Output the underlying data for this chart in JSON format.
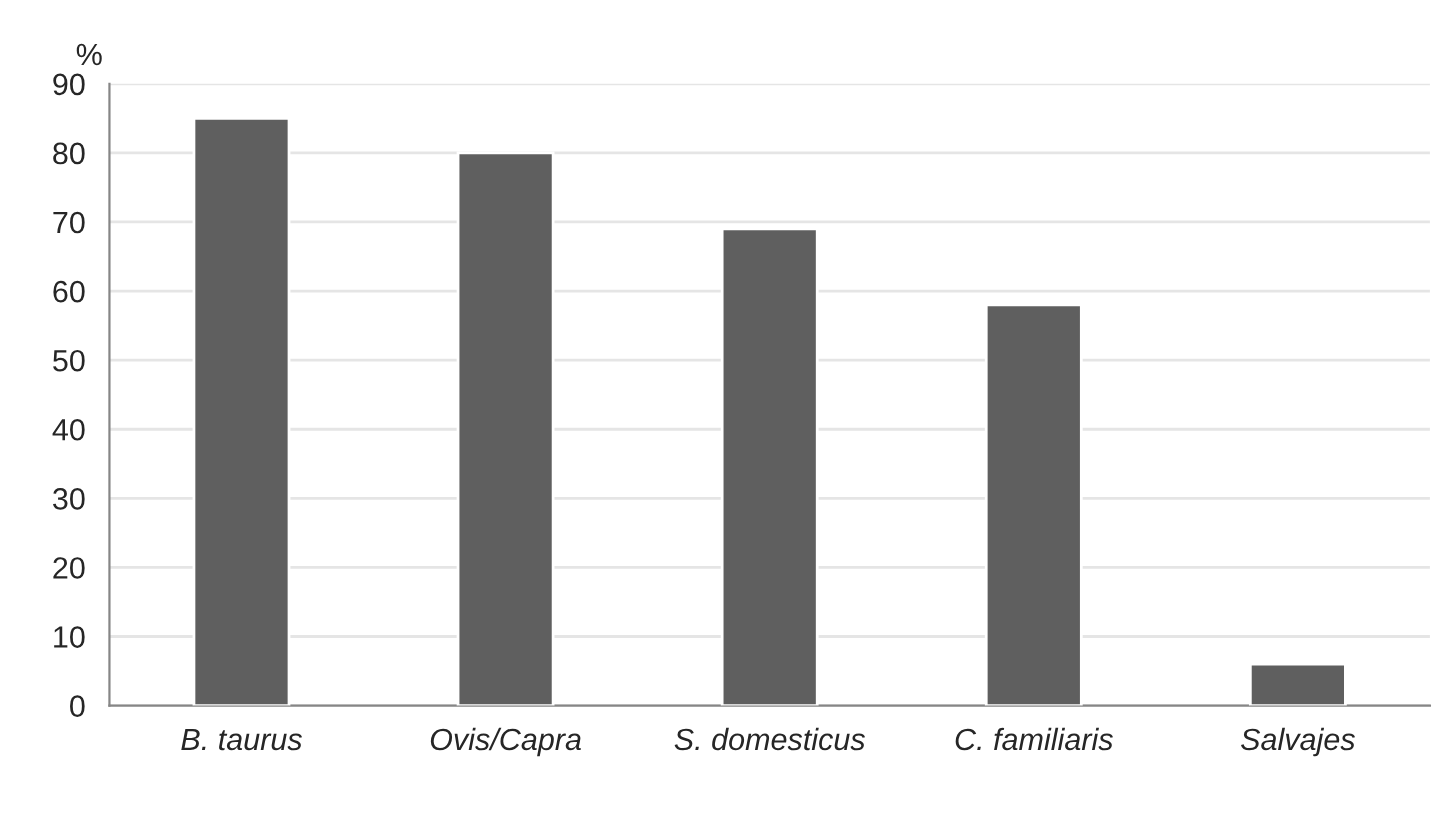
{
  "chart_data": {
    "type": "bar",
    "ylabel": "%",
    "categories": [
      "B. taurus",
      "Ovis/Capra",
      "S. domesticus",
      "C. familiaris",
      "Salvajes"
    ],
    "values": [
      85,
      80,
      69,
      58,
      6
    ],
    "color": "#5f5f5f",
    "ylim": [
      0,
      90
    ],
    "yticks": [
      0,
      10,
      20,
      30,
      40,
      50,
      60,
      70,
      80,
      90
    ],
    "grid": "y",
    "legend": false
  }
}
